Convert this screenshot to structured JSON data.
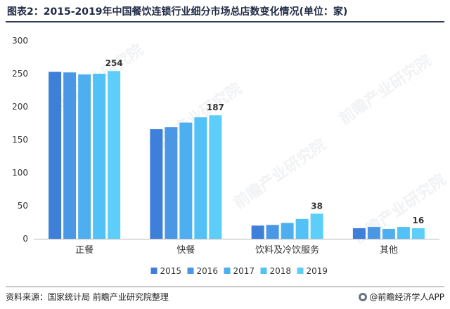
{
  "title": "图表2：2015-2019年中国餐饮连锁行业细分市场总店数变化情况(单位：家)",
  "source": "资料来源：国家统计局 前瞻产业研究院整理",
  "brand": "@前瞻经济学人APP",
  "watermark": "前瞻产业研究院",
  "colors": [
    "#3d7fd9",
    "#4a97e6",
    "#4daef0",
    "#52c1f5",
    "#5ccef9"
  ],
  "chart_data": {
    "type": "bar",
    "title": "",
    "xlabel": "",
    "ylabel": "",
    "ylim": [
      0,
      300
    ],
    "yticks": [
      0,
      50,
      100,
      150,
      200,
      250,
      300
    ],
    "grid": false,
    "legend_position": "bottom",
    "categories": [
      "正餐",
      "快餐",
      "饮料及冷饮服务",
      "其他"
    ],
    "series": [
      {
        "name": "2015",
        "values": [
          253,
          166,
          20,
          16
        ]
      },
      {
        "name": "2016",
        "values": [
          252,
          169,
          21,
          18
        ]
      },
      {
        "name": "2017",
        "values": [
          249,
          176,
          24,
          15
        ]
      },
      {
        "name": "2018",
        "values": [
          250,
          184,
          30,
          18
        ]
      },
      {
        "name": "2019",
        "values": [
          254,
          187,
          38,
          16
        ]
      }
    ],
    "data_labels": [
      "254",
      "187",
      "38",
      "16"
    ]
  }
}
